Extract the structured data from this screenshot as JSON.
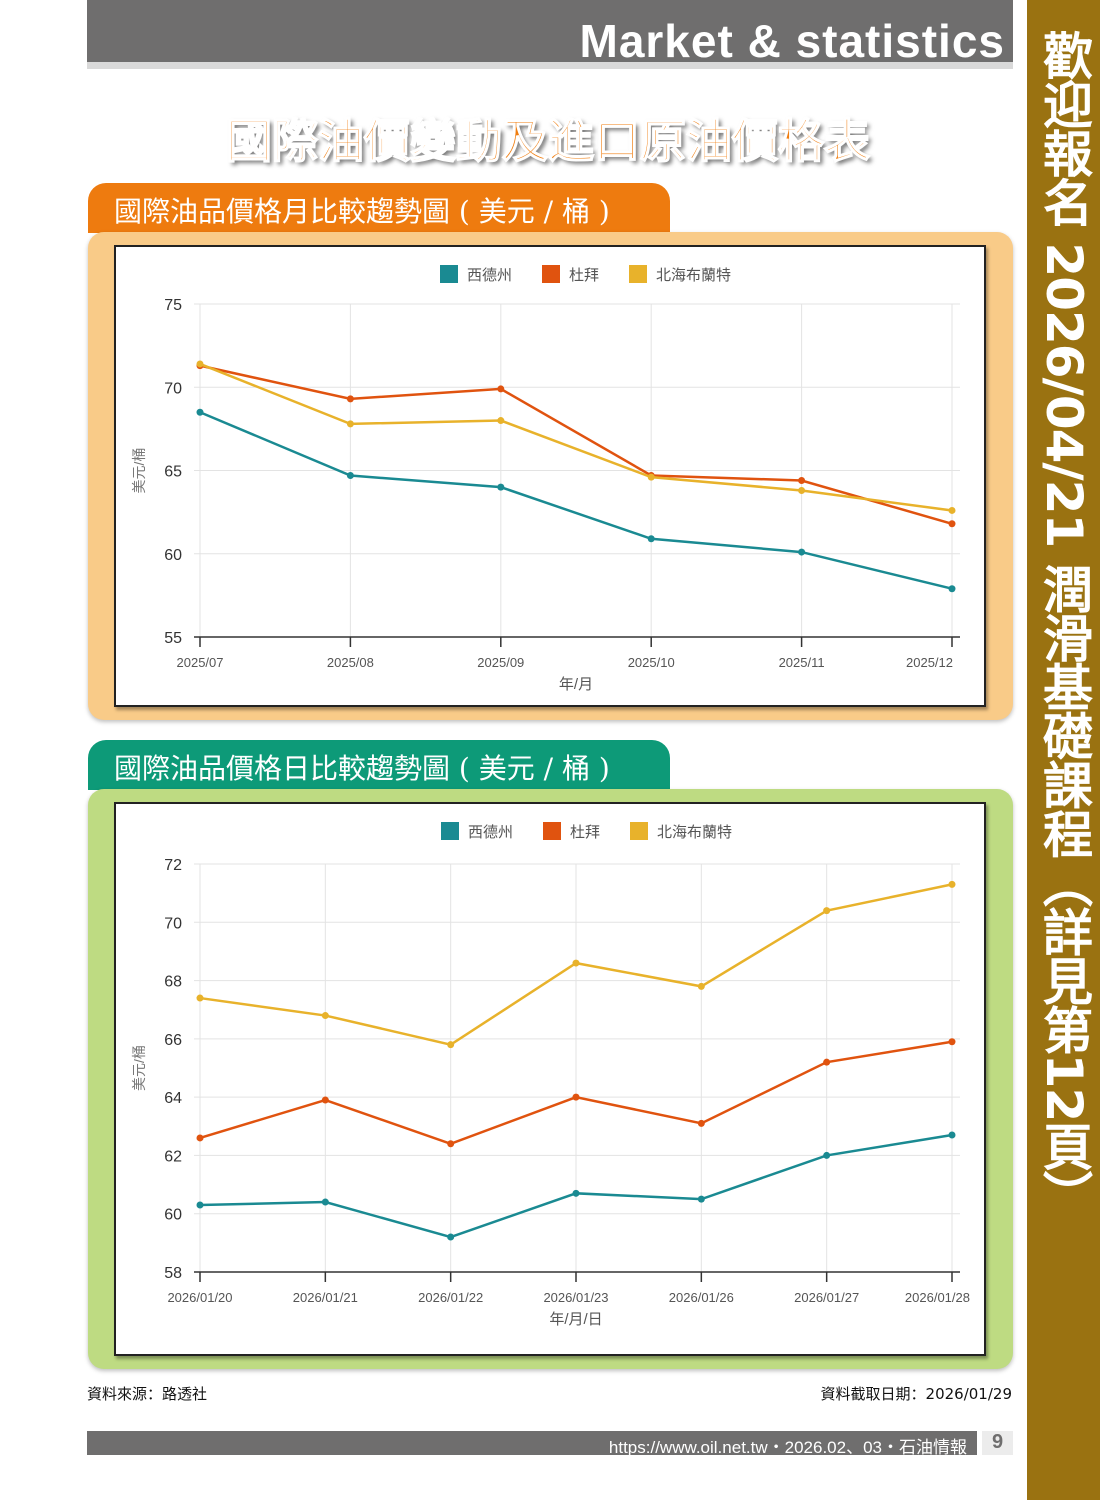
{
  "header": {
    "title": "Market & statistics"
  },
  "side_banner": {
    "text": "歡迎報名 2026/04/21 潤滑基礎課程（詳見第12頁）"
  },
  "main_title": "國際油價變動及進口原油價格表",
  "colors": {
    "wti": "#1a8a92",
    "dubai": "#e0530f",
    "brent": "#e8b22b"
  },
  "sections": [
    {
      "tab": "國際油品價格月比較趨勢圖 ( 美元 / 桶 )"
    },
    {
      "tab": "國際油品價格日比較趨勢圖 ( 美元 / 桶 )"
    }
  ],
  "chart_data": [
    {
      "type": "line",
      "title": "國際油品價格月比較趨勢圖 ( 美元 / 桶 )",
      "xlabel": "年/月",
      "ylabel": "美元/桶",
      "ylim": [
        55,
        75
      ],
      "yticks": [
        55,
        60,
        65,
        70,
        75
      ],
      "grid": true,
      "legend": "top-center",
      "categories": [
        "2025/07",
        "2025/08",
        "2025/09",
        "2025/10",
        "2025/11",
        "2025/12"
      ],
      "series": [
        {
          "name": "西德州",
          "values": [
            68.5,
            64.7,
            64.0,
            60.9,
            60.1,
            57.9
          ]
        },
        {
          "name": "杜拜",
          "values": [
            71.3,
            69.3,
            69.9,
            64.7,
            64.4,
            61.8
          ]
        },
        {
          "name": "北海布蘭特",
          "values": [
            71.4,
            67.8,
            68.0,
            64.6,
            63.8,
            62.6
          ]
        }
      ]
    },
    {
      "type": "line",
      "title": "國際油品價格日比較趨勢圖 ( 美元 / 桶 )",
      "xlabel": "年/月/日",
      "ylabel": "美元/桶",
      "ylim": [
        58,
        72
      ],
      "yticks": [
        58,
        60,
        62,
        64,
        66,
        68,
        70,
        72
      ],
      "grid": true,
      "legend": "top-center",
      "categories": [
        "2026/01/20",
        "2026/01/21",
        "2026/01/22",
        "2026/01/23",
        "2026/01/26",
        "2026/01/27",
        "2026/01/28"
      ],
      "series": [
        {
          "name": "西德州",
          "values": [
            60.3,
            60.4,
            59.2,
            60.7,
            60.5,
            62.0,
            62.7
          ]
        },
        {
          "name": "杜拜",
          "values": [
            62.6,
            63.9,
            62.4,
            64.0,
            63.1,
            65.2,
            65.9
          ]
        },
        {
          "name": "北海布蘭特",
          "values": [
            67.4,
            66.8,
            65.8,
            68.6,
            67.8,
            70.4,
            71.3
          ]
        }
      ]
    }
  ],
  "source": "資料來源：路透社",
  "date": "資料截取日期：2026/01/29",
  "footer": {
    "text": "https://www.oil.net.tw・2026.02、03・石油情報",
    "page": "9"
  }
}
